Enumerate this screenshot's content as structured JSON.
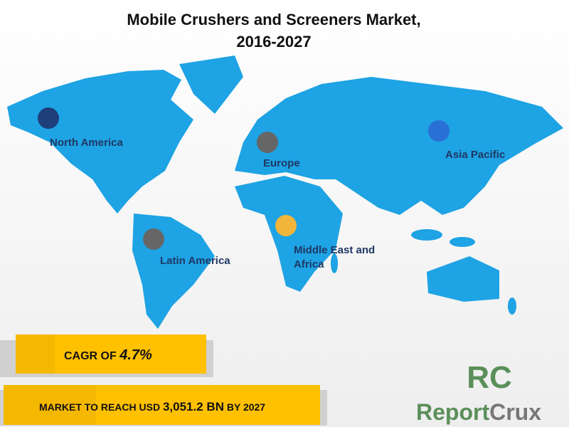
{
  "header": {
    "title_line1": "Mobile Crushers and Screeners Market,",
    "title_line2": "2016-2027"
  },
  "regions": [
    {
      "label": "North America"
    },
    {
      "label": "Europe"
    },
    {
      "label": "Asia Pacific"
    },
    {
      "label": "Latin America"
    },
    {
      "label": "Middle  East and",
      "label_line2": "Africa"
    }
  ],
  "cagr": {
    "prefix": "CAGR OF ",
    "value": "4.7%"
  },
  "market": {
    "prefix": "MARKET TO REACH USD ",
    "value": "3,051.2 BN",
    "suffix": " BY 2027"
  },
  "logo": {
    "mark": "RC",
    "word1": "Report",
    "word2": "Crux"
  }
}
